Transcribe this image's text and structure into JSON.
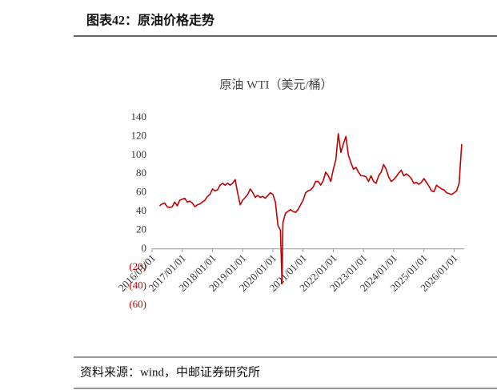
{
  "header": {
    "title": "图表42：原油价格走势"
  },
  "chart_data": {
    "type": "line",
    "title": "原油 WTI（美元/桶）",
    "color": "#c00000",
    "x": [
      "2016/04/01",
      "2016/05/01",
      "2016/06/01",
      "2016/07/01",
      "2016/08/01",
      "2016/09/01",
      "2016/10/01",
      "2016/11/01",
      "2016/12/01",
      "2017/01/01",
      "2017/02/01",
      "2017/03/01",
      "2017/04/01",
      "2017/05/01",
      "2017/06/01",
      "2017/07/01",
      "2017/08/01",
      "2017/09/01",
      "2017/10/01",
      "2017/11/01",
      "2017/12/01",
      "2018/01/01",
      "2018/02/01",
      "2018/03/01",
      "2018/04/01",
      "2018/05/01",
      "2018/06/01",
      "2018/07/01",
      "2018/08/01",
      "2018/09/01",
      "2018/10/01",
      "2018/11/01",
      "2018/12/01",
      "2019/01/01",
      "2019/02/01",
      "2019/03/01",
      "2019/04/01",
      "2019/05/01",
      "2019/06/01",
      "2019/07/01",
      "2019/08/01",
      "2019/09/01",
      "2019/10/01",
      "2019/11/01",
      "2019/12/01",
      "2020/01/01",
      "2020/02/01",
      "2020/03/01",
      "2020/04/01",
      "2020/04/20",
      "2020/05/01",
      "2020/06/01",
      "2020/07/01",
      "2020/08/01",
      "2020/09/01",
      "2020/10/01",
      "2020/11/01",
      "2020/12/01",
      "2021/01/01",
      "2021/02/01",
      "2021/03/01",
      "2021/04/01",
      "2021/05/01",
      "2021/06/01",
      "2021/07/01",
      "2021/08/01",
      "2021/09/01",
      "2021/10/01",
      "2021/11/01",
      "2021/12/01",
      "2022/01/01",
      "2022/02/01",
      "2022/03/01",
      "2022/04/01",
      "2022/05/01",
      "2022/06/01",
      "2022/07/01",
      "2022/08/01",
      "2022/09/01",
      "2022/10/01",
      "2022/11/01",
      "2022/12/01",
      "2023/01/01",
      "2023/02/01",
      "2023/03/01",
      "2023/04/01",
      "2023/05/01",
      "2023/06/01",
      "2023/07/01",
      "2023/08/01",
      "2023/09/01",
      "2023/10/01",
      "2023/11/01",
      "2023/12/01",
      "2024/01/01",
      "2024/02/01",
      "2024/03/01",
      "2024/04/01",
      "2024/05/01",
      "2024/06/01",
      "2024/07/01",
      "2024/08/01",
      "2024/09/01",
      "2024/10/01",
      "2024/11/01",
      "2024/12/01",
      "2025/01/01",
      "2025/02/01",
      "2025/03/01",
      "2025/04/01",
      "2025/05/01",
      "2025/06/01",
      "2025/07/01",
      "2025/08/01",
      "2025/09/01",
      "2025/10/01",
      "2025/11/01",
      "2025/12/01",
      "2026/01/01",
      "2026/02/01",
      "2026/03/01",
      "2026/03/15",
      "2026/04/01"
    ],
    "values": [
      46,
      48,
      49,
      45,
      44,
      45,
      50,
      46,
      52,
      53,
      54,
      50,
      51,
      49,
      45,
      47,
      48,
      50,
      52,
      56,
      58,
      64,
      62,
      63,
      68,
      70,
      68,
      70,
      68,
      70,
      74,
      60,
      47,
      52,
      55,
      58,
      64,
      60,
      55,
      57,
      55,
      56,
      54,
      57,
      60,
      58,
      50,
      25,
      20,
      -37,
      28,
      38,
      40,
      42,
      40,
      39,
      42,
      47,
      52,
      60,
      62,
      63,
      66,
      72,
      72,
      68,
      73,
      82,
      78,
      72,
      85,
      95,
      123,
      103,
      112,
      120,
      100,
      92,
      85,
      87,
      82,
      78,
      78,
      77,
      72,
      78,
      72,
      70,
      78,
      82,
      90,
      85,
      77,
      72,
      74,
      77,
      81,
      84,
      78,
      80,
      78,
      75,
      70,
      71,
      69,
      71,
      75,
      71,
      67,
      62,
      61,
      68,
      66,
      64,
      63,
      60,
      59,
      58,
      60,
      62,
      70,
      90,
      112
    ],
    "xlim": [
      "2016/01/01",
      "2026/05/01"
    ],
    "xticks": [
      "2016/01/01",
      "2017/01/01",
      "2018/01/01",
      "2019/01/01",
      "2020/01/01",
      "2021/01/01",
      "2022/01/01",
      "2023/01/01",
      "2024/01/01",
      "2025/01/01",
      "2026/01/01"
    ],
    "ylim": [
      -60,
      140
    ],
    "yticks": [
      {
        "value": -60,
        "label": "(60)"
      },
      {
        "value": -40,
        "label": "(40)"
      },
      {
        "value": -20,
        "label": "(20)"
      },
      0,
      20,
      40,
      60,
      80,
      100,
      120,
      140
    ]
  },
  "footer": {
    "source": "资料来源：wind，中邮证券研究所"
  }
}
